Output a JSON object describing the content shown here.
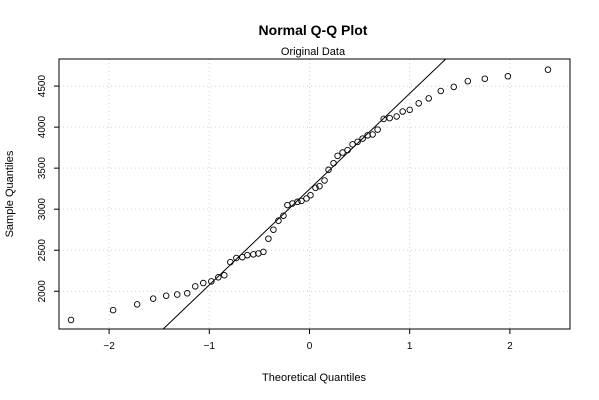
{
  "chart_data": {
    "type": "scatter",
    "title": "Normal Q-Q Plot",
    "subtitle": "Original Data",
    "xlabel": "Theoretical Quantiles",
    "ylabel": "Sample Quantiles",
    "xlim": [
      -2.5,
      2.6
    ],
    "ylim": [
      1540,
      4830
    ],
    "x_ticks": [
      -2,
      -1,
      0,
      1,
      2
    ],
    "x_tick_labels": [
      "−2",
      "−1",
      "0",
      "1",
      "2"
    ],
    "y_ticks": [
      2000,
      2500,
      3000,
      3500,
      4000,
      4500
    ],
    "y_tick_labels": [
      "2000",
      "2500",
      "3000",
      "3500",
      "4000",
      "4500"
    ],
    "grid": true,
    "point_marker": "open-circle",
    "reference_line": {
      "from": [
        -1.46,
        1540
      ],
      "to": [
        1.36,
        4830
      ]
    },
    "points": [
      {
        "x": -2.38,
        "y": 1650
      },
      {
        "x": -1.96,
        "y": 1770
      },
      {
        "x": -1.72,
        "y": 1840
      },
      {
        "x": -1.56,
        "y": 1910
      },
      {
        "x": -1.43,
        "y": 1945
      },
      {
        "x": -1.32,
        "y": 1960
      },
      {
        "x": -1.22,
        "y": 1975
      },
      {
        "x": -1.14,
        "y": 2060
      },
      {
        "x": -1.06,
        "y": 2100
      },
      {
        "x": -0.98,
        "y": 2120
      },
      {
        "x": -0.91,
        "y": 2170
      },
      {
        "x": -0.85,
        "y": 2195
      },
      {
        "x": -0.79,
        "y": 2355
      },
      {
        "x": -0.73,
        "y": 2405
      },
      {
        "x": -0.67,
        "y": 2415
      },
      {
        "x": -0.62,
        "y": 2440
      },
      {
        "x": -0.56,
        "y": 2450
      },
      {
        "x": -0.51,
        "y": 2460
      },
      {
        "x": -0.46,
        "y": 2480
      },
      {
        "x": -0.41,
        "y": 2640
      },
      {
        "x": -0.36,
        "y": 2750
      },
      {
        "x": -0.31,
        "y": 2860
      },
      {
        "x": -0.26,
        "y": 2920
      },
      {
        "x": -0.22,
        "y": 3050
      },
      {
        "x": -0.17,
        "y": 3070
      },
      {
        "x": -0.12,
        "y": 3090
      },
      {
        "x": -0.08,
        "y": 3100
      },
      {
        "x": -0.03,
        "y": 3130
      },
      {
        "x": 0.01,
        "y": 3170
      },
      {
        "x": 0.06,
        "y": 3260
      },
      {
        "x": 0.1,
        "y": 3280
      },
      {
        "x": 0.15,
        "y": 3350
      },
      {
        "x": 0.19,
        "y": 3480
      },
      {
        "x": 0.24,
        "y": 3560
      },
      {
        "x": 0.28,
        "y": 3650
      },
      {
        "x": 0.33,
        "y": 3690
      },
      {
        "x": 0.38,
        "y": 3720
      },
      {
        "x": 0.43,
        "y": 3790
      },
      {
        "x": 0.48,
        "y": 3820
      },
      {
        "x": 0.53,
        "y": 3860
      },
      {
        "x": 0.58,
        "y": 3900
      },
      {
        "x": 0.63,
        "y": 3910
      },
      {
        "x": 0.68,
        "y": 3970
      },
      {
        "x": 0.74,
        "y": 4100
      },
      {
        "x": 0.8,
        "y": 4110
      },
      {
        "x": 0.87,
        "y": 4130
      },
      {
        "x": 0.93,
        "y": 4190
      },
      {
        "x": 1.0,
        "y": 4210
      },
      {
        "x": 1.09,
        "y": 4290
      },
      {
        "x": 1.19,
        "y": 4350
      },
      {
        "x": 1.31,
        "y": 4440
      },
      {
        "x": 1.44,
        "y": 4490
      },
      {
        "x": 1.58,
        "y": 4560
      },
      {
        "x": 1.75,
        "y": 4590
      },
      {
        "x": 1.98,
        "y": 4620
      },
      {
        "x": 2.38,
        "y": 4700
      }
    ]
  }
}
